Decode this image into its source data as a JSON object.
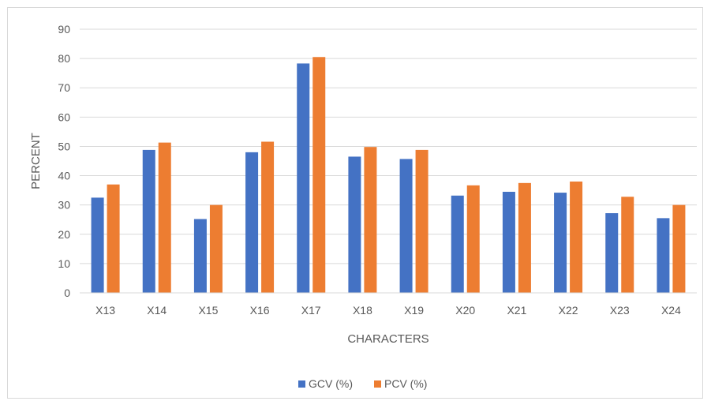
{
  "chart_data": {
    "type": "bar",
    "categories": [
      "X13",
      "X14",
      "X15",
      "X16",
      "X17",
      "X18",
      "X19",
      "X20",
      "X21",
      "X22",
      "X23",
      "X24"
    ],
    "series": [
      {
        "name": "GCV (%)",
        "color": "#4472c4",
        "values": [
          32.5,
          48.8,
          25.2,
          48.0,
          78.3,
          46.5,
          45.7,
          33.2,
          34.5,
          34.2,
          27.2,
          25.5
        ]
      },
      {
        "name": "PCV (%)",
        "color": "#ed7d31",
        "values": [
          37.0,
          51.3,
          30.0,
          51.6,
          80.5,
          49.8,
          48.8,
          36.7,
          37.5,
          38.0,
          32.8,
          30.0
        ]
      }
    ],
    "title": "",
    "xlabel": "CHARACTERS",
    "ylabel": "PERCENT",
    "ylim": [
      0,
      90
    ],
    "yticks": [
      0,
      10,
      20,
      30,
      40,
      50,
      60,
      70,
      80,
      90
    ],
    "grid": true,
    "legend_position": "bottom"
  }
}
